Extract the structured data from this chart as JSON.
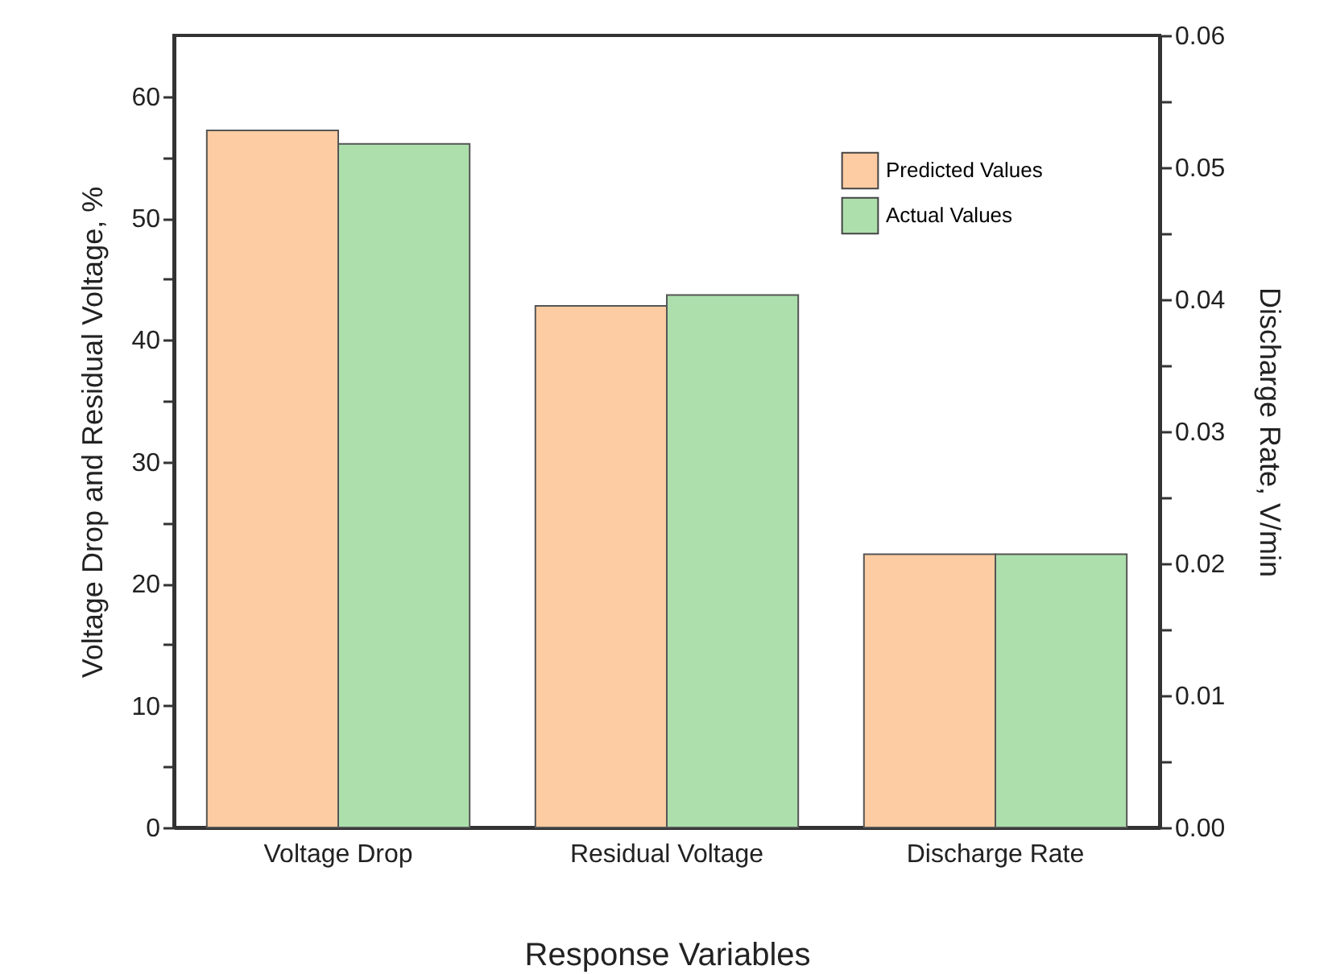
{
  "chart_data": {
    "type": "bar",
    "categories": [
      "Voltage Drop",
      "Residual Voltage",
      "Discharge Rate"
    ],
    "xlabel": "Response Variables",
    "ylabel": "Voltage Drop and Residual Voltage, %",
    "y2label": "Discharge Rate, V/min",
    "ylim": [
      0,
      65
    ],
    "yticks": [
      0,
      {
        "value": 5,
        "label": null
      },
      10,
      {
        "value": 15,
        "label": null
      },
      20,
      {
        "value": 25,
        "label": null
      },
      30,
      {
        "value": 35,
        "label": null
      },
      40,
      {
        "value": 45,
        "label": null
      },
      50,
      {
        "value": 55,
        "label": null
      },
      60
    ],
    "y2lim": [
      0,
      0.06
    ],
    "y2ticks": [
      {
        "value": 0,
        "label": "0.00"
      },
      {
        "value": 0.005,
        "label": null
      },
      0.01,
      {
        "value": 0.015,
        "label": null
      },
      0.02,
      {
        "value": 0.025,
        "label": null
      },
      0.03,
      {
        "value": 0.035,
        "label": null
      },
      0.04,
      {
        "value": 0.045,
        "label": null
      },
      0.05,
      {
        "value": 0.055,
        "label": null
      },
      0.06
    ],
    "series": [
      {
        "name": "Predicted Values",
        "color": "#fdcca2",
        "values": [
          57.2,
          42.8,
          null
        ]
      },
      {
        "name": "Actual Values",
        "color": "#addfad",
        "values": [
          56.1,
          43.7,
          null
        ]
      },
      {
        "color": "#fdcca2",
        "axis": "y2",
        "values": [
          null,
          null,
          0.0207
        ]
      },
      {
        "color": "#addfad",
        "axis": "y2",
        "values": [
          null,
          null,
          0.0207
        ]
      }
    ],
    "legend": "top right",
    "grid": false
  }
}
